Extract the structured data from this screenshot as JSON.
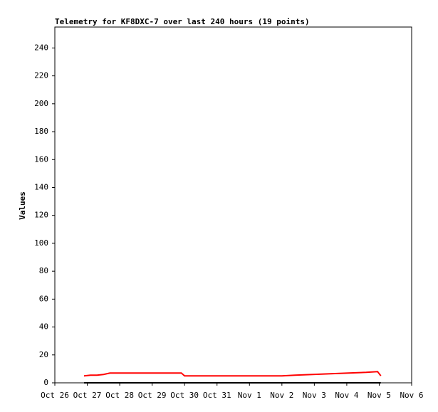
{
  "chart_data": {
    "type": "line",
    "title": "Telemetry for KF8DXC-7 over last 240 hours (19 points)",
    "y_label": "Values",
    "x": [
      0.9,
      1.1,
      1.3,
      1.5,
      1.7,
      2.5,
      3.2,
      3.9,
      4.0,
      5.0,
      6.0,
      7.0,
      7.4,
      7.95,
      8.5,
      9.05,
      9.6,
      9.95,
      10.05
    ],
    "series": [
      {
        "color": "#ff0000",
        "values": [
          5,
          5.5,
          5.5,
          6,
          7,
          7,
          7,
          7,
          5,
          5,
          5,
          5,
          5.5,
          6,
          6.5,
          7,
          7.5,
          8,
          5
        ]
      },
      {
        "color": "#000000",
        "values": [
          0,
          0,
          0,
          0,
          0,
          0,
          0,
          0,
          0,
          0,
          0,
          0,
          0,
          0,
          0,
          0,
          0,
          0,
          0
        ]
      }
    ],
    "xlim": [
      0,
      11
    ],
    "xticks": [
      {
        "value": 0,
        "label": "Oct 26"
      },
      {
        "value": 1,
        "label": "Oct 27"
      },
      {
        "value": 2,
        "label": "Oct 28"
      },
      {
        "value": 3,
        "label": "Oct 29"
      },
      {
        "value": 4,
        "label": "Oct 30"
      },
      {
        "value": 5,
        "label": "Oct 31"
      },
      {
        "value": 6,
        "label": "Nov 1"
      },
      {
        "value": 7,
        "label": "Nov 2"
      },
      {
        "value": 8,
        "label": "Nov 3"
      },
      {
        "value": 9,
        "label": "Nov 4"
      },
      {
        "value": 10,
        "label": "Nov 5"
      },
      {
        "value": 11,
        "label": "Nov 6"
      }
    ],
    "ylim": [
      0,
      255
    ],
    "yticks": [
      0,
      20,
      40,
      60,
      80,
      100,
      120,
      140,
      160,
      180,
      200,
      220,
      240
    ]
  }
}
